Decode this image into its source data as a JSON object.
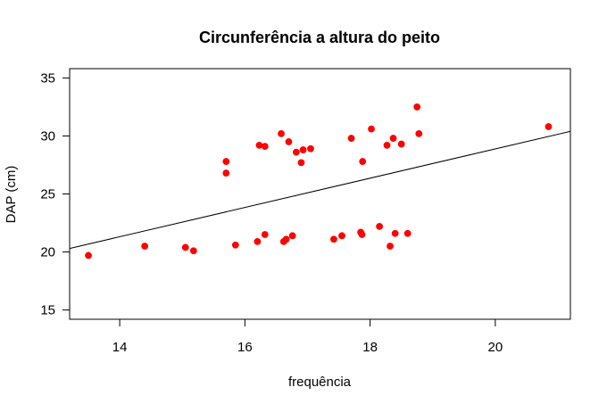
{
  "chart_data": {
    "type": "scatter",
    "title": "Circunferência a altura do peito",
    "xlabel": "frequência",
    "ylabel": "DAP (cm)",
    "xlim": [
      13.2,
      21.2
    ],
    "ylim": [
      14.2,
      35.8
    ],
    "x_ticks": [
      14,
      16,
      18,
      20
    ],
    "y_ticks": [
      15,
      20,
      25,
      30,
      35
    ],
    "grid": false,
    "point_color": "#ff0000",
    "line_color": "#000000",
    "points": [
      {
        "x": 13.5,
        "y": 19.7
      },
      {
        "x": 14.4,
        "y": 20.5
      },
      {
        "x": 15.05,
        "y": 20.4
      },
      {
        "x": 15.18,
        "y": 20.1
      },
      {
        "x": 15.7,
        "y": 27.8
      },
      {
        "x": 15.7,
        "y": 26.8
      },
      {
        "x": 15.85,
        "y": 20.6
      },
      {
        "x": 16.2,
        "y": 20.9
      },
      {
        "x": 16.23,
        "y": 29.2
      },
      {
        "x": 16.32,
        "y": 29.1
      },
      {
        "x": 16.32,
        "y": 21.5
      },
      {
        "x": 16.58,
        "y": 30.2
      },
      {
        "x": 16.62,
        "y": 20.9
      },
      {
        "x": 16.66,
        "y": 21.1
      },
      {
        "x": 16.7,
        "y": 29.5
      },
      {
        "x": 16.76,
        "y": 21.4
      },
      {
        "x": 16.82,
        "y": 28.6
      },
      {
        "x": 16.9,
        "y": 27.7
      },
      {
        "x": 16.93,
        "y": 28.8
      },
      {
        "x": 17.05,
        "y": 28.9
      },
      {
        "x": 17.42,
        "y": 21.1
      },
      {
        "x": 17.55,
        "y": 21.4
      },
      {
        "x": 17.7,
        "y": 29.8
      },
      {
        "x": 17.85,
        "y": 21.7
      },
      {
        "x": 17.87,
        "y": 21.5
      },
      {
        "x": 17.88,
        "y": 27.8
      },
      {
        "x": 18.02,
        "y": 30.6
      },
      {
        "x": 18.15,
        "y": 22.2
      },
      {
        "x": 18.27,
        "y": 29.2
      },
      {
        "x": 18.32,
        "y": 20.5
      },
      {
        "x": 18.37,
        "y": 29.8
      },
      {
        "x": 18.4,
        "y": 21.6
      },
      {
        "x": 18.5,
        "y": 29.3
      },
      {
        "x": 18.6,
        "y": 21.6
      },
      {
        "x": 18.75,
        "y": 32.5
      },
      {
        "x": 18.78,
        "y": 30.2
      },
      {
        "x": 20.85,
        "y": 30.8
      }
    ],
    "trendline": {
      "x": [
        13.2,
        21.2
      ],
      "y": [
        20.3,
        30.4
      ]
    }
  }
}
